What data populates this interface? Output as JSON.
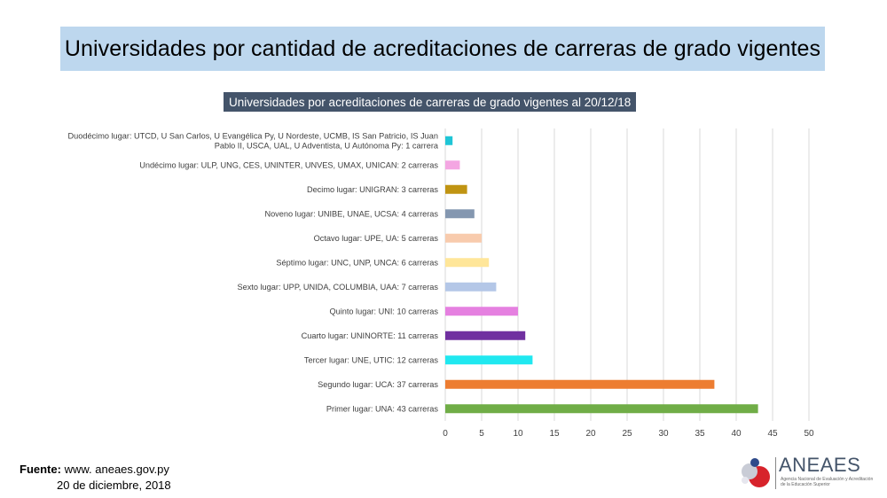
{
  "header": {
    "title": "Universidades por cantidad de acreditaciones de carreras de grado vigentes"
  },
  "chart_data": {
    "type": "bar",
    "orientation": "horizontal",
    "title": "Universidades por acreditaciones de carreras de grado vigentes al 20/12/18",
    "categories": [
      "Duodécimo lugar: UTCD, U San Carlos, U Evangélica Py, U Nordeste, UCMB, IS San Patricio, IS Juan Pablo II, USCA, UAL, U Adventista, U Autónoma Py: 1 carrera",
      "Undécimo lugar: ULP, UNG, CES, UNINTER, UNVES, UMAX, UNICAN: 2 carreras",
      "Decimo lugar: UNIGRAN: 3 carreras",
      "Noveno lugar: UNIBE, UNAE, UCSA: 4 carreras",
      "Octavo lugar: UPE, UA: 5 carreras",
      "Séptimo lugar: UNC, UNP, UNCA: 6 carreras",
      "Sexto lugar: UPP, UNIDA, COLUMBIA, UAA: 7 carreras",
      "Quinto lugar: UNI: 10 carreras",
      "Cuarto lugar: UNINORTE: 11 carreras",
      "Tercer lugar: UNE, UTIC: 12 carreras",
      "Segundo lugar: UCA: 37 carreras",
      "Primer lugar: UNA: 43 carreras"
    ],
    "category_lines": [
      [
        "Duodécimo lugar: UTCD, U San Carlos, U Evangélica Py, U Nordeste, UCMB, IS San Patricio, IS Juan",
        "Pablo II, USCA, UAL, U Adventista, U Autónoma Py: 1 carrera"
      ],
      [
        "Undécimo lugar: ULP, UNG, CES, UNINTER, UNVES, UMAX, UNICAN: 2 carreras"
      ],
      [
        "Decimo lugar: UNIGRAN: 3 carreras"
      ],
      [
        "Noveno lugar: UNIBE, UNAE, UCSA: 4 carreras"
      ],
      [
        "Octavo lugar: UPE, UA: 5 carreras"
      ],
      [
        "Séptimo lugar: UNC, UNP, UNCA: 6 carreras"
      ],
      [
        "Sexto lugar: UPP, UNIDA, COLUMBIA, UAA: 7 carreras"
      ],
      [
        "Quinto lugar: UNI: 10 carreras"
      ],
      [
        "Cuarto lugar: UNINORTE: 11 carreras"
      ],
      [
        "Tercer lugar: UNE, UTIC: 12 carreras"
      ],
      [
        "Segundo lugar: UCA: 37 carreras"
      ],
      [
        "Primer lugar: UNA: 43 carreras"
      ]
    ],
    "values": [
      1,
      2,
      3,
      4,
      5,
      6,
      7,
      10,
      11,
      12,
      37,
      43
    ],
    "colors": [
      "#1fc5d6",
      "#f4a6e2",
      "#c09412",
      "#8497b0",
      "#f8cbad",
      "#ffe699",
      "#b4c7e7",
      "#e580e0",
      "#7030a0",
      "#20e8f0",
      "#ed7d31",
      "#70ad47"
    ],
    "xlim": [
      0,
      50
    ],
    "xticks": [
      0,
      5,
      10,
      15,
      20,
      25,
      30,
      35,
      40,
      45,
      50
    ],
    "grid": true
  },
  "source": {
    "label": "Fuente:",
    "url": "www. aneaes.gov.py",
    "date": "20 de diciembre, 2018"
  },
  "logo": {
    "name": "ANEAES",
    "subtitle": "Agencia Nacional de Evaluación y Acreditación de la Educación Superior"
  }
}
